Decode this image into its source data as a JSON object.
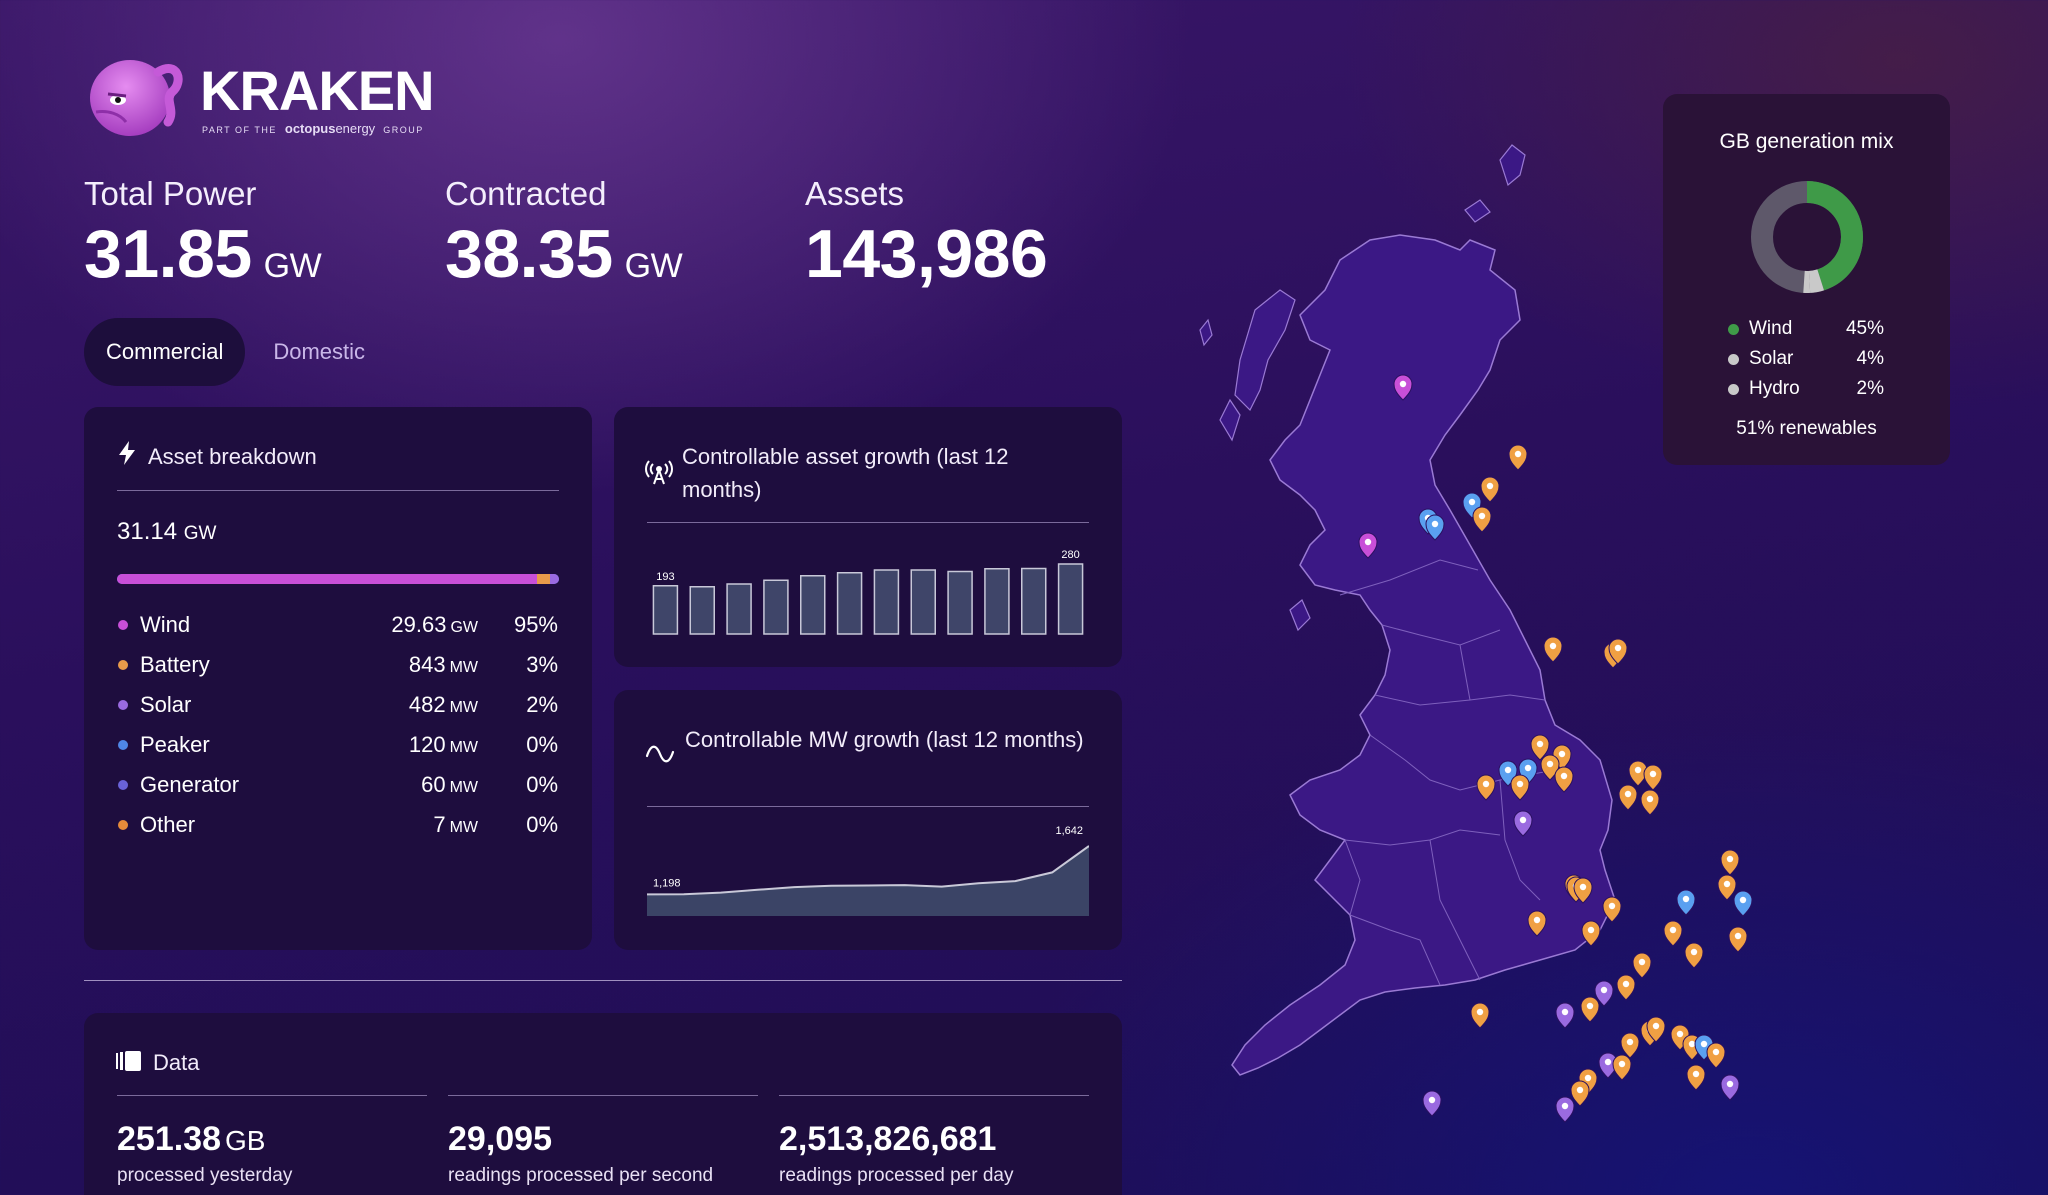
{
  "brand": {
    "name": "KRAKEN",
    "tagline_prefix": "PART OF THE",
    "tagline_brand": "octopus",
    "tagline_brand2": "energy",
    "tagline_suffix": "GROUP"
  },
  "kpis": [
    {
      "label": "Total Power",
      "value": "31.85",
      "unit": "GW"
    },
    {
      "label": "Contracted",
      "value": "38.35",
      "unit": "GW"
    },
    {
      "label": "Assets",
      "value": "143,986",
      "unit": ""
    }
  ],
  "tabs": [
    {
      "label": "Commercial",
      "active": true
    },
    {
      "label": "Domestic",
      "active": false
    }
  ],
  "asset_breakdown": {
    "title": "Asset breakdown",
    "total_value": "31.14",
    "total_unit": "GW",
    "items": [
      {
        "name": "Wind",
        "value": "29.63",
        "unit": "GW",
        "pct": "95%",
        "color": "#c84fd8",
        "share": 0.95
      },
      {
        "name": "Battery",
        "value": "843",
        "unit": "MW",
        "pct": "3%",
        "color": "#e89a4a",
        "share": 0.03
      },
      {
        "name": "Solar",
        "value": "482",
        "unit": "MW",
        "pct": "2%",
        "color": "#9a6ae0",
        "share": 0.02
      },
      {
        "name": "Peaker",
        "value": "120",
        "unit": "MW",
        "pct": "0%",
        "color": "#4f86e6",
        "share": 0.0
      },
      {
        "name": "Generator",
        "value": "60",
        "unit": "MW",
        "pct": "0%",
        "color": "#6a62d8",
        "share": 0.0
      },
      {
        "name": "Other",
        "value": "7",
        "unit": "MW",
        "pct": "0%",
        "color": "#e58a3a",
        "share": 0.0
      }
    ]
  },
  "asset_growth": {
    "title": "Controllable asset growth (last 12 months)",
    "chart_data": {
      "type": "bar",
      "values": [
        193,
        189,
        200,
        215,
        233,
        245,
        256,
        256,
        250,
        261,
        262,
        280
      ],
      "labels_shown": {
        "first": "193",
        "last": "280"
      }
    }
  },
  "mw_growth": {
    "title": "Controllable MW growth (last 12 months)",
    "chart_data": {
      "type": "area",
      "values": [
        1198,
        1199,
        1215,
        1240,
        1265,
        1278,
        1280,
        1283,
        1270,
        1300,
        1320,
        1400,
        1642
      ],
      "labels_shown": {
        "first": "1,198",
        "last": "1,642"
      }
    }
  },
  "data_section": {
    "title": "Data",
    "stats": [
      {
        "value": "251.38",
        "unit": "GB",
        "label": "processed yesterday"
      },
      {
        "value": "29,095",
        "unit": "",
        "label": "readings processed per second"
      },
      {
        "value": "2,513,826,681",
        "unit": "",
        "label": "readings processed per day"
      }
    ]
  },
  "generation_mix": {
    "title": "GB generation mix",
    "items": [
      {
        "name": "Wind",
        "pct": "45%",
        "color": "#3f9a48",
        "share": 0.45
      },
      {
        "name": "Solar",
        "pct": "4%",
        "color": "#c9c9c9",
        "share": 0.04
      },
      {
        "name": "Hydro",
        "pct": "2%",
        "color": "#c9c9c9",
        "share": 0.02
      }
    ],
    "other_color": "#5e586a",
    "footer": "51% renewables"
  },
  "map": {
    "fill": "#3b1885",
    "border": "#9a7ad4",
    "marker_colors": {
      "battery": "#f0a043",
      "wind": "#c84fd8",
      "peaker": "#5aa0f0",
      "solar": "#9a6ae0"
    }
  }
}
